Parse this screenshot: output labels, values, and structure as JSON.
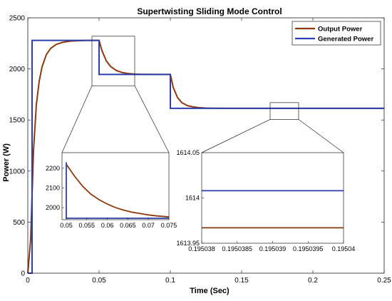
{
  "chart_data": {
    "type": "line",
    "title": "Supertwisting Sliding Mode Control",
    "xlabel": "Time (Sec)",
    "ylabel": "Power (W)",
    "xlim": [
      0,
      0.25
    ],
    "ylim": [
      0,
      2500
    ],
    "xticks": [
      "0",
      "0.05",
      "0.1",
      "0.15",
      "0.2",
      "0.25"
    ],
    "yticks": [
      "0",
      "500",
      "1000",
      "1500",
      "2000",
      "2500"
    ],
    "legend": {
      "placement": "top-right"
    },
    "colors": {
      "output": "#8B3A0E",
      "generated": "#2B3FAF"
    },
    "series": [
      {
        "name": "Output Power",
        "x": [
          0,
          0.002,
          0.004,
          0.006,
          0.008,
          0.01,
          0.013,
          0.016,
          0.02,
          0.025,
          0.03,
          0.035,
          0.04,
          0.045,
          0.05,
          0.052,
          0.055,
          0.058,
          0.062,
          0.066,
          0.07,
          0.075,
          0.08,
          0.09,
          0.1,
          0.102,
          0.105,
          0.108,
          0.112,
          0.116,
          0.12,
          0.125,
          0.13,
          0.14,
          0.15,
          0.2,
          0.25
        ],
        "y": [
          0,
          330,
          1200,
          1650,
          1880,
          2020,
          2140,
          2200,
          2240,
          2262,
          2272,
          2276,
          2278,
          2279,
          2279,
          2180,
          2080,
          2025,
          1985,
          1965,
          1955,
          1949,
          1947,
          1946,
          1946,
          1820,
          1720,
          1670,
          1640,
          1628,
          1621,
          1617,
          1615,
          1614,
          1614,
          1614,
          1614
        ]
      },
      {
        "name": "Generated Power",
        "x": [
          0,
          0.003,
          0.003,
          0.05,
          0.05,
          0.1,
          0.1,
          0.25
        ],
        "y": [
          0,
          0,
          2279,
          2279,
          1946,
          1946,
          1614,
          1614
        ]
      }
    ],
    "insets": [
      {
        "zoom_xlim": [
          0.05,
          0.075
        ],
        "zoom_ylim": [
          1946,
          2279
        ],
        "xticks": [
          "0.05",
          "0.055",
          "0.06",
          "0.065",
          "0.07",
          "0.075"
        ],
        "yticks": [
          "2000",
          "2100",
          "2200"
        ],
        "output": {
          "x": [
            0.05,
            0.052,
            0.054,
            0.056,
            0.058,
            0.06,
            0.062,
            0.064,
            0.066,
            0.068,
            0.07,
            0.072,
            0.075
          ],
          "y": [
            2220,
            2160,
            2108,
            2068,
            2040,
            2018,
            2000,
            1987,
            1977,
            1970,
            1963,
            1958,
            1953
          ]
        },
        "generated": {
          "x": [
            0.05,
            0.05,
            0.075
          ],
          "y": [
            2230,
            1946,
            1946
          ]
        }
      },
      {
        "zoom_xlim": [
          0.195038,
          0.19504
        ],
        "zoom_ylim": [
          1613.95,
          1614.05
        ],
        "xticks": [
          "0.195038",
          "0.1950385",
          "0.195039",
          "0.1950395",
          "0.19504"
        ],
        "yticks": [
          "1613.95",
          "1614",
          "1614.05"
        ],
        "output": {
          "x": [
            0.195038,
            0.19504
          ],
          "y": [
            1613.967,
            1613.967
          ]
        },
        "generated": {
          "x": [
            0.195038,
            0.19504
          ],
          "y": [
            1614.008,
            1614.008
          ]
        }
      }
    ]
  }
}
